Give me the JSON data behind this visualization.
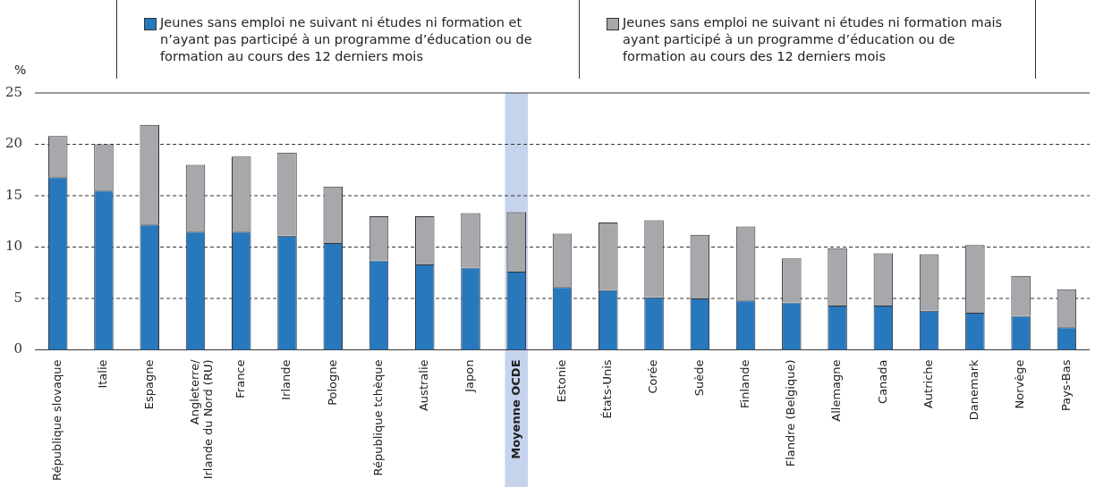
{
  "chart_data": {
    "type": "bar",
    "stacked": true,
    "ylabel": "%",
    "grid": "y",
    "legend": "top",
    "categories": [
      "République slovaque",
      "Italie",
      "Espagne",
      "Angleterre/ Irlande du Nord (RU)",
      "France",
      "Irlande",
      "Pologne",
      "République tchèque",
      "Australie",
      "Japon",
      "Moyenne OCDE",
      "Estonie",
      "États-Unis",
      "Corée",
      "Suède",
      "Finlande",
      "Flandre (Belgique)",
      "Allemagne",
      "Canada",
      "Autriche",
      "Danemark",
      "Norvège",
      "Pays-Bas"
    ],
    "series": [
      {
        "name": "Jeunes sans emploi ne suivant ni études ni formation et n’ayant pas participé à un programme d’éducation ou de formation au cours des 12 derniers mois",
        "color": "#2878bd",
        "values": [
          16.8,
          15.5,
          12.2,
          11.5,
          11.5,
          11.1,
          10.4,
          8.7,
          8.3,
          8.0,
          7.6,
          6.1,
          5.8,
          5.1,
          5.0,
          4.8,
          4.6,
          4.3,
          4.3,
          3.8,
          3.6,
          3.3,
          2.2
        ]
      },
      {
        "name": "Jeunes sans emploi ne suivant ni études ni formation mais ayant participé à un programme d’éducation ou de formation au cours des 12 derniers mois",
        "color": "#a7a8ab",
        "values": [
          4.0,
          4.5,
          9.7,
          6.5,
          7.3,
          8.1,
          5.5,
          4.3,
          4.7,
          5.3,
          5.8,
          5.2,
          6.6,
          7.5,
          6.2,
          7.2,
          4.3,
          5.6,
          5.1,
          5.5,
          6.6,
          3.9,
          3.7
        ]
      }
    ],
    "ylim": [
      0,
      25
    ],
    "yticks": [
      0,
      5,
      10,
      15,
      20,
      25
    ],
    "bands": [
      {
        "axis": "x",
        "from": "Moyenne OCDE",
        "to": "Moyenne OCDE",
        "color": "#c6d3ec"
      }
    ]
  }
}
